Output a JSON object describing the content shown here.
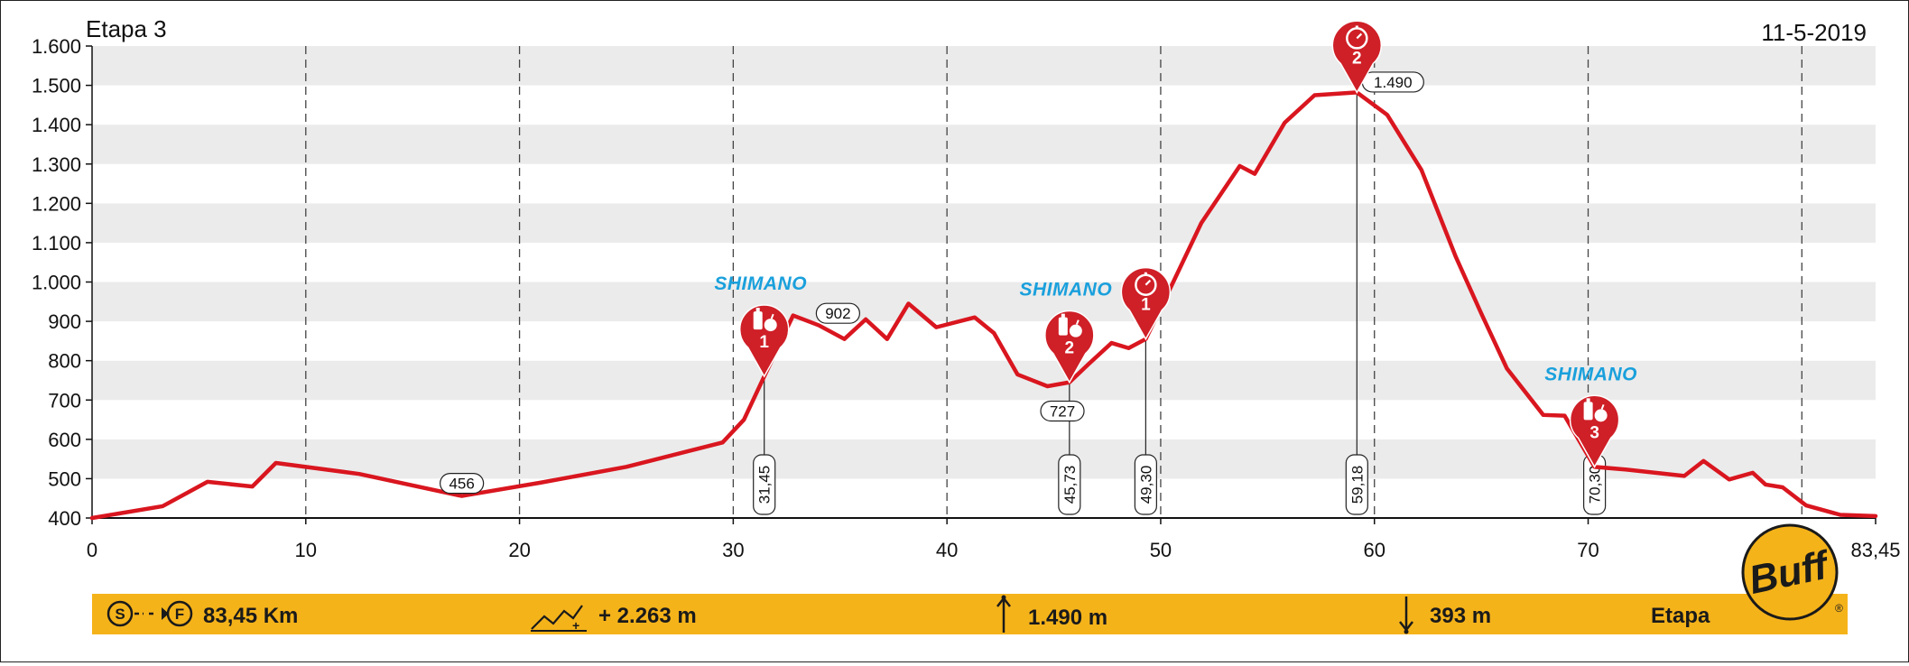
{
  "header": {
    "stage": "Etapa 3",
    "date": "11-5-2019"
  },
  "chart_data": {
    "type": "area",
    "title": "Etapa 3",
    "xlim": [
      0,
      83.45
    ],
    "ylim": [
      400,
      1600
    ],
    "x_ticks": [
      {
        "value": 0,
        "label": "0"
      },
      {
        "value": 10,
        "label": "10"
      },
      {
        "value": 20,
        "label": "20"
      },
      {
        "value": 30,
        "label": "30"
      },
      {
        "value": 40,
        "label": "40"
      },
      {
        "value": 50,
        "label": "50"
      },
      {
        "value": 60,
        "label": "60"
      },
      {
        "value": 70,
        "label": "70"
      },
      {
        "value": 83.45,
        "label": "83,45"
      }
    ],
    "y_ticks": [
      {
        "value": 400,
        "label": "400"
      },
      {
        "value": 500,
        "label": "500"
      },
      {
        "value": 600,
        "label": "600"
      },
      {
        "value": 700,
        "label": "700"
      },
      {
        "value": 800,
        "label": "800"
      },
      {
        "value": 900,
        "label": "900"
      },
      {
        "value": 1000,
        "label": "1.000"
      },
      {
        "value": 1100,
        "label": "1.100"
      },
      {
        "value": 1200,
        "label": "1.200"
      },
      {
        "value": 1300,
        "label": "1.300"
      },
      {
        "value": 1400,
        "label": "1.400"
      },
      {
        "value": 1500,
        "label": "1.500"
      },
      {
        "value": 1600,
        "label": "1.600"
      }
    ],
    "vertical_gridlines": [
      10,
      20,
      30,
      40,
      50,
      60,
      70,
      80
    ],
    "horizontal_bands": true,
    "profile": {
      "color": "#d9161f",
      "x": [
        0,
        3.3,
        5.4,
        7.5,
        8.6,
        12.5,
        17.3,
        21.0,
        25.0,
        29.5,
        30.5,
        31.45,
        32.8,
        34.0,
        35.2,
        36.2,
        37.2,
        38.2,
        39.5,
        41.3,
        42.2,
        43.3,
        44.7,
        45.73,
        46.6,
        47.7,
        48.5,
        49.3,
        50.5,
        51.9,
        53.7,
        54.4,
        55.8,
        57.2,
        59.18,
        60.6,
        62.2,
        63.8,
        65.0,
        66.2,
        67.9,
        68.9,
        70.3,
        71.8,
        74.5,
        75.4,
        76.6,
        77.7,
        78.3,
        79.1,
        80.2,
        81.8,
        83.45
      ],
      "y": [
        400,
        430,
        492,
        480,
        540,
        512,
        456,
        490,
        530,
        592,
        650,
        760,
        915,
        890,
        855,
        905,
        855,
        945,
        885,
        910,
        870,
        765,
        735,
        745,
        790,
        845,
        832,
        855,
        990,
        1150,
        1295,
        1275,
        1405,
        1475,
        1482,
        1425,
        1285,
        1065,
        920,
        780,
        662,
        660,
        530,
        523,
        507,
        545,
        498,
        515,
        485,
        478,
        432,
        408,
        405
      ]
    },
    "elevation_labels": [
      {
        "x": 17.3,
        "y": 456,
        "label": "456"
      },
      {
        "x": 34.9,
        "y": 902,
        "label": "902"
      },
      {
        "x": 45.4,
        "y": 727,
        "label": "727"
      },
      {
        "x": 60.7,
        "y": 1490,
        "label": "1.490"
      }
    ],
    "km_markers": [
      {
        "x": 31.45,
        "y": 760,
        "label": "31,45"
      },
      {
        "x": 45.73,
        "y": 745,
        "label": "45,73"
      },
      {
        "x": 49.3,
        "y": 855,
        "label": "49,30"
      },
      {
        "x": 59.18,
        "y": 1482,
        "label": "59,18"
      },
      {
        "x": 70.3,
        "y": 530,
        "label": "70,30"
      }
    ],
    "pins": [
      {
        "x": 31.45,
        "y": 760,
        "type": "feed",
        "number": "1",
        "sponsor": "SHIMANO"
      },
      {
        "x": 45.73,
        "y": 745,
        "type": "feed",
        "number": "2",
        "sponsor": "SHIMANO"
      },
      {
        "x": 49.3,
        "y": 855,
        "type": "timer",
        "number": "1",
        "sponsor": ""
      },
      {
        "x": 59.18,
        "y": 1482,
        "type": "timer",
        "number": "2",
        "sponsor": ""
      },
      {
        "x": 70.3,
        "y": 530,
        "type": "feed",
        "number": "3",
        "sponsor": "SHIMANO"
      }
    ]
  },
  "footer": {
    "start_letter": "S",
    "finish_letter": "F",
    "distance": "83,45 Km",
    "climb": "+ 2.263 m",
    "climb_symbol": "+",
    "max_alt": "1.490 m",
    "min_alt": "393 m",
    "label": "Etapa",
    "bar_color": "#f5b31a"
  },
  "logo": {
    "brand": "Buff",
    "trademark": "®"
  }
}
